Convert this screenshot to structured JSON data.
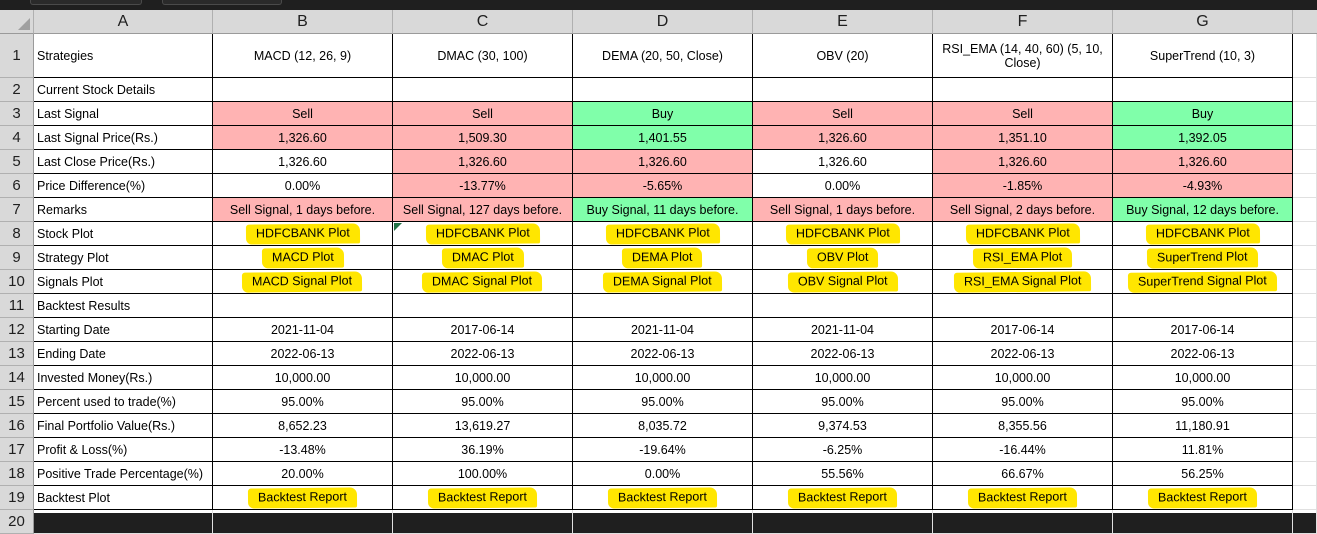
{
  "columns": [
    "A",
    "B",
    "C",
    "D",
    "E",
    "F",
    "G"
  ],
  "rows": [
    {
      "n": "1",
      "cells": [
        "Strategies",
        "MACD (12, 26, 9)",
        "DMAC (30, 100)",
        "DEMA (20, 50, Close)",
        "OBV (20)",
        "RSI_EMA (14, 40, 60) (5, 10, Close)",
        "SuperTrend (10, 3)"
      ]
    },
    {
      "n": "2",
      "cells": [
        "Current Stock Details",
        "",
        "",
        "",
        "",
        "",
        ""
      ]
    },
    {
      "n": "3",
      "cells": [
        "Last Signal",
        "Sell",
        "Sell",
        "Buy",
        "Sell",
        "Sell",
        "Buy"
      ],
      "fill": [
        "",
        "sell",
        "sell",
        "buy",
        "sell",
        "sell",
        "buy"
      ]
    },
    {
      "n": "4",
      "cells": [
        "Last Signal Price(Rs.)",
        "1,326.60",
        "1,509.30",
        "1,401.55",
        "1,326.60",
        "1,351.10",
        "1,392.05"
      ],
      "fill": [
        "",
        "sell",
        "sell",
        "buy",
        "sell",
        "sell",
        "buy"
      ]
    },
    {
      "n": "5",
      "cells": [
        "Last Close Price(Rs.)",
        "1,326.60",
        "1,326.60",
        "1,326.60",
        "1,326.60",
        "1,326.60",
        "1,326.60"
      ],
      "fill": [
        "",
        "",
        "sell",
        "sell",
        "",
        "sell",
        "sell"
      ]
    },
    {
      "n": "6",
      "cells": [
        "Price Difference(%)",
        "0.00%",
        "-13.77%",
        "-5.65%",
        "0.00%",
        "-1.85%",
        "-4.93%"
      ],
      "fill": [
        "",
        "",
        "sell",
        "sell",
        "",
        "sell",
        "sell"
      ]
    },
    {
      "n": "7",
      "cells": [
        "Remarks",
        "Sell Signal, 1 days before.",
        "Sell Signal, 127 days before.",
        "Buy Signal, 11 days before.",
        "Sell Signal, 1 days before.",
        "Sell Signal, 2 days before.",
        "Buy Signal, 12 days before."
      ],
      "fill": [
        "",
        "sell",
        "sell",
        "buy",
        "sell",
        "sell",
        "buy"
      ]
    },
    {
      "n": "8",
      "cells": [
        "Stock Plot",
        "HDFCBANK Plot",
        "HDFCBANK Plot",
        "HDFCBANK Plot",
        "HDFCBANK Plot",
        "HDFCBANK Plot",
        "HDFCBANK Plot"
      ],
      "link": true
    },
    {
      "n": "9",
      "cells": [
        "Strategy Plot",
        "MACD Plot",
        "DMAC Plot",
        "DEMA Plot",
        "OBV Plot",
        "RSI_EMA Plot",
        "SuperTrend Plot"
      ],
      "link": true
    },
    {
      "n": "10",
      "cells": [
        "Signals Plot",
        "MACD Signal Plot",
        "DMAC Signal Plot",
        "DEMA Signal Plot",
        "OBV Signal Plot",
        "RSI_EMA Signal Plot",
        "SuperTrend Signal Plot"
      ],
      "link": true
    },
    {
      "n": "11",
      "cells": [
        "Backtest Results",
        "",
        "",
        "",
        "",
        "",
        ""
      ]
    },
    {
      "n": "12",
      "cells": [
        "Starting Date",
        "2021-11-04",
        "2017-06-14",
        "2021-11-04",
        "2021-11-04",
        "2017-06-14",
        "2017-06-14"
      ]
    },
    {
      "n": "13",
      "cells": [
        "Ending Date",
        "2022-06-13",
        "2022-06-13",
        "2022-06-13",
        "2022-06-13",
        "2022-06-13",
        "2022-06-13"
      ]
    },
    {
      "n": "14",
      "cells": [
        "Invested Money(Rs.)",
        "10,000.00",
        "10,000.00",
        "10,000.00",
        "10,000.00",
        "10,000.00",
        "10,000.00"
      ]
    },
    {
      "n": "15",
      "cells": [
        "Percent used to trade(%)",
        "95.00%",
        "95.00%",
        "95.00%",
        "95.00%",
        "95.00%",
        "95.00%"
      ]
    },
    {
      "n": "16",
      "cells": [
        "Final Portfolio Value(Rs.)",
        "8,652.23",
        "13,619.27",
        "8,035.72",
        "9,374.53",
        "8,355.56",
        "11,180.91"
      ]
    },
    {
      "n": "17",
      "cells": [
        "Profit & Loss(%)",
        "-13.48%",
        "36.19%",
        "-19.64%",
        "-6.25%",
        "-16.44%",
        "11.81%"
      ]
    },
    {
      "n": "18",
      "cells": [
        "Positive Trade Percentage(%)",
        "20.00%",
        "100.00%",
        "0.00%",
        "55.56%",
        "66.67%",
        "56.25%"
      ]
    },
    {
      "n": "19",
      "cells": [
        "Backtest Plot",
        "Backtest Report",
        "Backtest Report",
        "Backtest Report",
        "Backtest Report",
        "Backtest Report",
        "Backtest Report"
      ],
      "link": true
    },
    {
      "n": "20",
      "cells": [
        "",
        "",
        "",
        "",
        "",
        "",
        ""
      ]
    }
  ],
  "colors": {
    "sell": "#ffb3b3",
    "buy": "#80ffaa",
    "highlight": "#ffe600"
  }
}
